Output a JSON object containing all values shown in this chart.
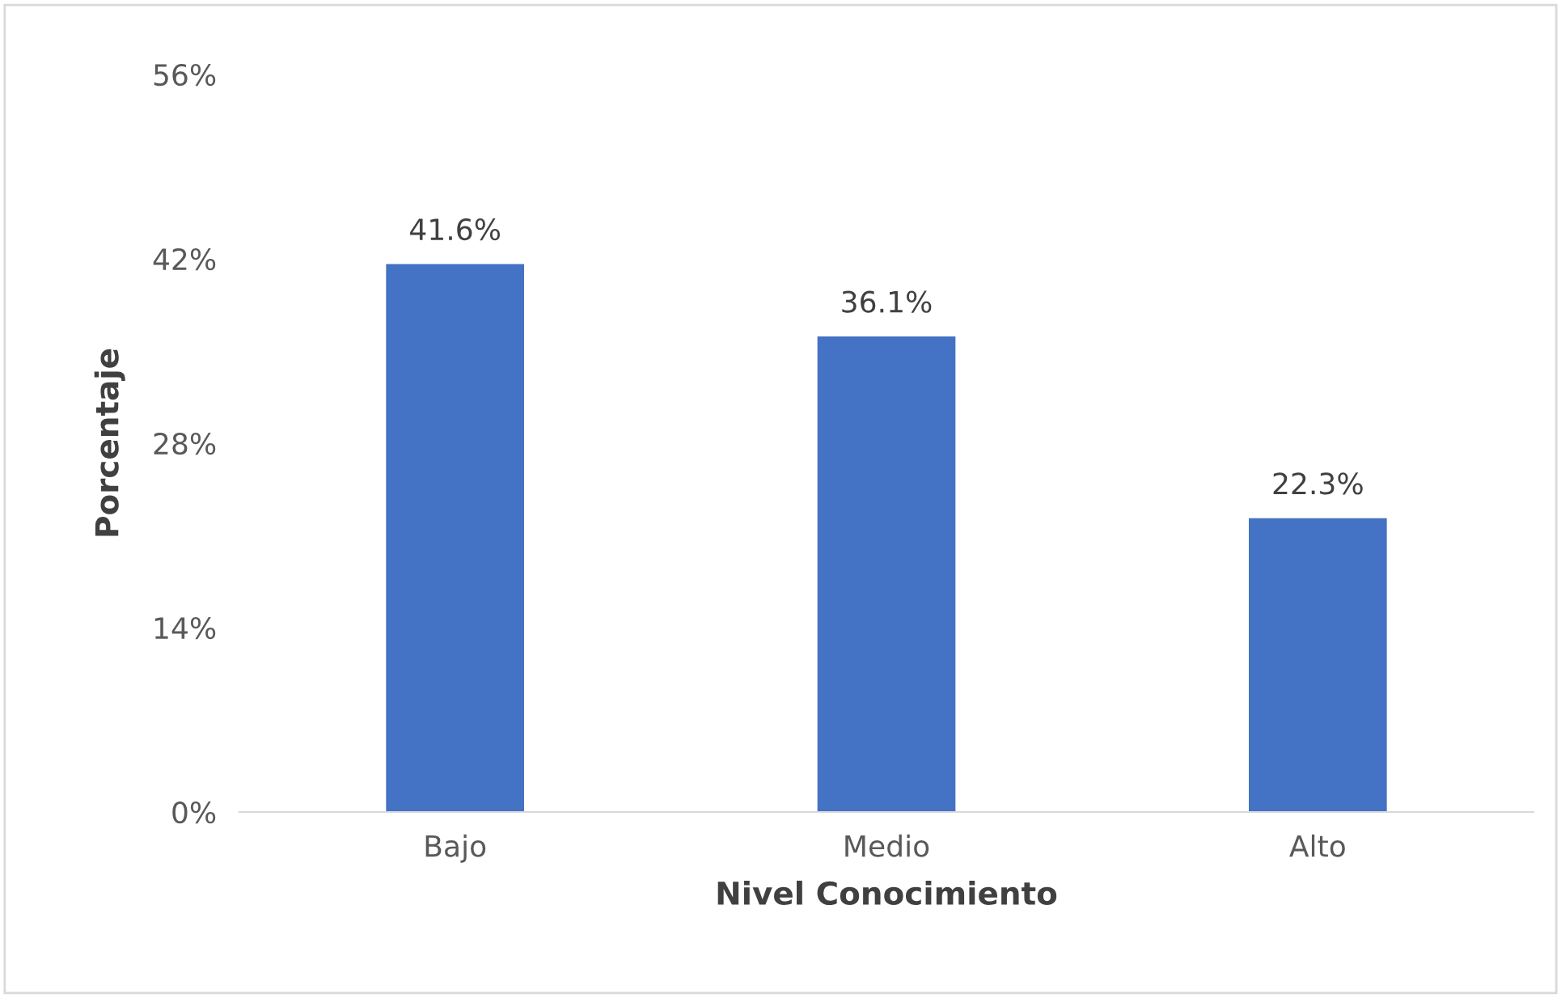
{
  "chart_data": {
    "type": "bar",
    "xlabel": "Nivel Conocimiento",
    "ylabel": "Porcentaje",
    "categories": [
      "Bajo",
      "Medio",
      "Alto"
    ],
    "values": [
      41.6,
      36.1,
      22.3
    ],
    "color": "#4472c4",
    "value_labels": [
      "41.6%",
      "36.1%",
      "22.3%"
    ],
    "ylim": [
      0,
      56
    ],
    "yticks": [
      {
        "value": 0,
        "label": "0%"
      },
      {
        "value": 14,
        "label": "14%"
      },
      {
        "value": 28,
        "label": "28%"
      },
      {
        "value": 42,
        "label": "42%"
      },
      {
        "value": 56,
        "label": "56%"
      }
    ],
    "grid": false,
    "legend": false
  }
}
